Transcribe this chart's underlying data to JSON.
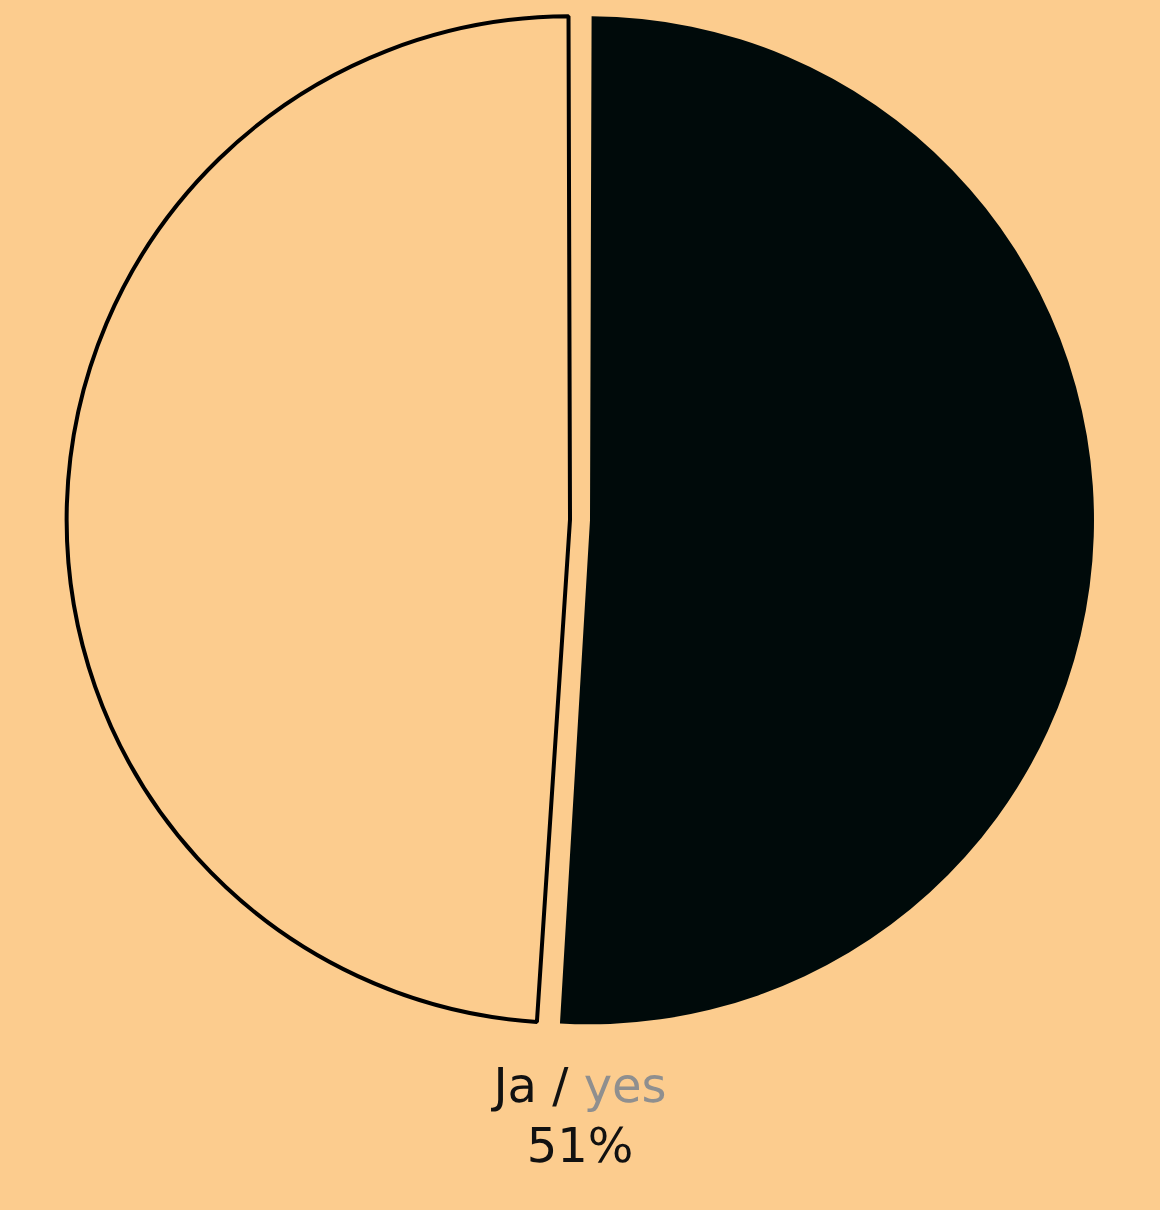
{
  "chart_data": {
    "type": "pie",
    "categories": [
      "Ja / yes",
      null
    ],
    "values": [
      51,
      49
    ],
    "colors": [
      "#000a0a",
      "#fccc8e"
    ],
    "value_labels": [
      "51%",
      null
    ],
    "legend": false
  }
}
